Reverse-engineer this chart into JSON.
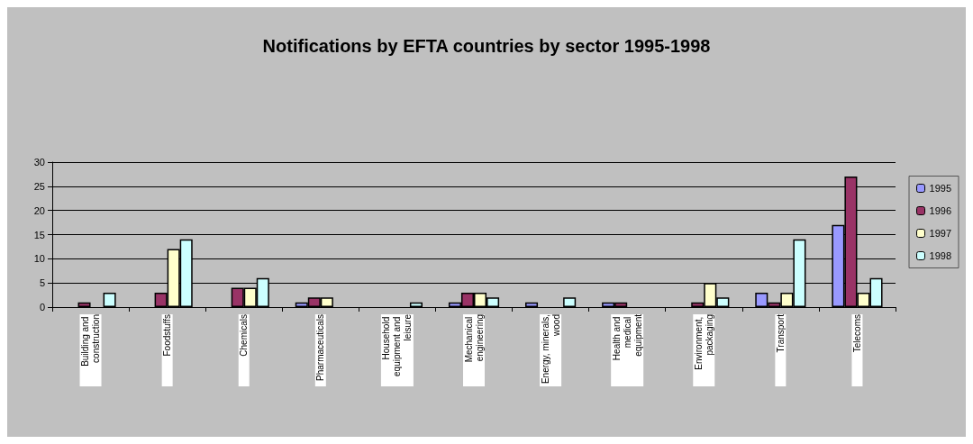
{
  "chart_data": {
    "type": "bar",
    "title": "Notifications by EFTA countries by sector 1995-1998",
    "categories": [
      "Building and construction",
      "Foodstuffs",
      "Chemicals",
      "Pharmaceuticals",
      "Household equipment and leisure",
      "Mechanical engineering",
      "Energy, minerals, wood",
      "Health and medical equipment",
      "Environment, packaging",
      "Transport",
      "Telecoms"
    ],
    "series": [
      {
        "name": "1995",
        "color": "#9999ff",
        "values": [
          0,
          0,
          0,
          1,
          0,
          1,
          1,
          1,
          0,
          3,
          17
        ]
      },
      {
        "name": "1996",
        "color": "#993366",
        "values": [
          1,
          3,
          4,
          2,
          0,
          3,
          0,
          1,
          1,
          1,
          27
        ]
      },
      {
        "name": "1997",
        "color": "#ffffcc",
        "values": [
          0,
          12,
          4,
          2,
          0,
          3,
          0,
          0,
          5,
          3,
          3
        ]
      },
      {
        "name": "1998",
        "color": "#ccffff",
        "values": [
          3,
          14,
          6,
          0,
          1,
          2,
          2,
          0,
          2,
          14,
          6
        ]
      }
    ],
    "ylim": [
      0,
      30
    ],
    "yticks": [
      0,
      5,
      10,
      15,
      20,
      25,
      30
    ],
    "grid": "y",
    "legend": "right"
  }
}
